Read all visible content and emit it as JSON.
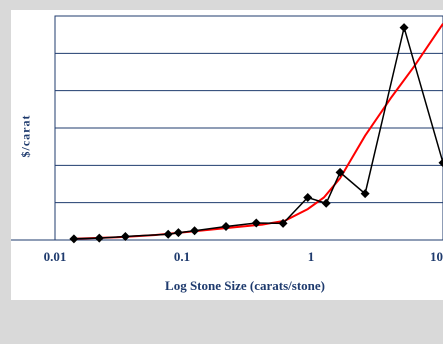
{
  "chart_data": {
    "type": "line",
    "xscale": "log",
    "xlim": [
      0.01,
      10
    ],
    "ylim": [
      0,
      58
    ],
    "grid": "horizontal",
    "xlabel": "Log Stone Size (carats/stone)",
    "ylabel": "$/carat",
    "x_ticks": [
      "0.01",
      "0.1",
      "1",
      "10"
    ],
    "series": [
      {
        "color": "#000000",
        "marker": "diamond",
        "x": [
          0.014,
          0.022,
          0.035,
          0.075,
          0.09,
          0.12,
          0.21,
          0.36,
          0.58,
          0.9,
          1.25,
          1.6,
          2.5,
          5.0,
          10.0
        ],
        "y": [
          0.3,
          0.5,
          0.9,
          1.5,
          1.9,
          2.4,
          3.5,
          4.4,
          4.3,
          11.0,
          9.5,
          17.5,
          12.0,
          55.0,
          20.0
        ]
      },
      {
        "color": "#ff0000",
        "marker": "none",
        "x": [
          0.014,
          0.03,
          0.06,
          0.1,
          0.2,
          0.4,
          0.6,
          0.9,
          1.2,
          1.6,
          2.5,
          4.0,
          6.0,
          10.0
        ],
        "y": [
          0.3,
          0.7,
          1.3,
          2.0,
          3.0,
          4.0,
          5.0,
          8.0,
          11.0,
          16.0,
          27.0,
          37.0,
          45.0,
          56.0
        ]
      }
    ]
  },
  "colors": {
    "background": "#d9d9d9",
    "plot_area": "#ffffff",
    "text": "#1f3b6e",
    "grid": "#1f3b6e"
  }
}
